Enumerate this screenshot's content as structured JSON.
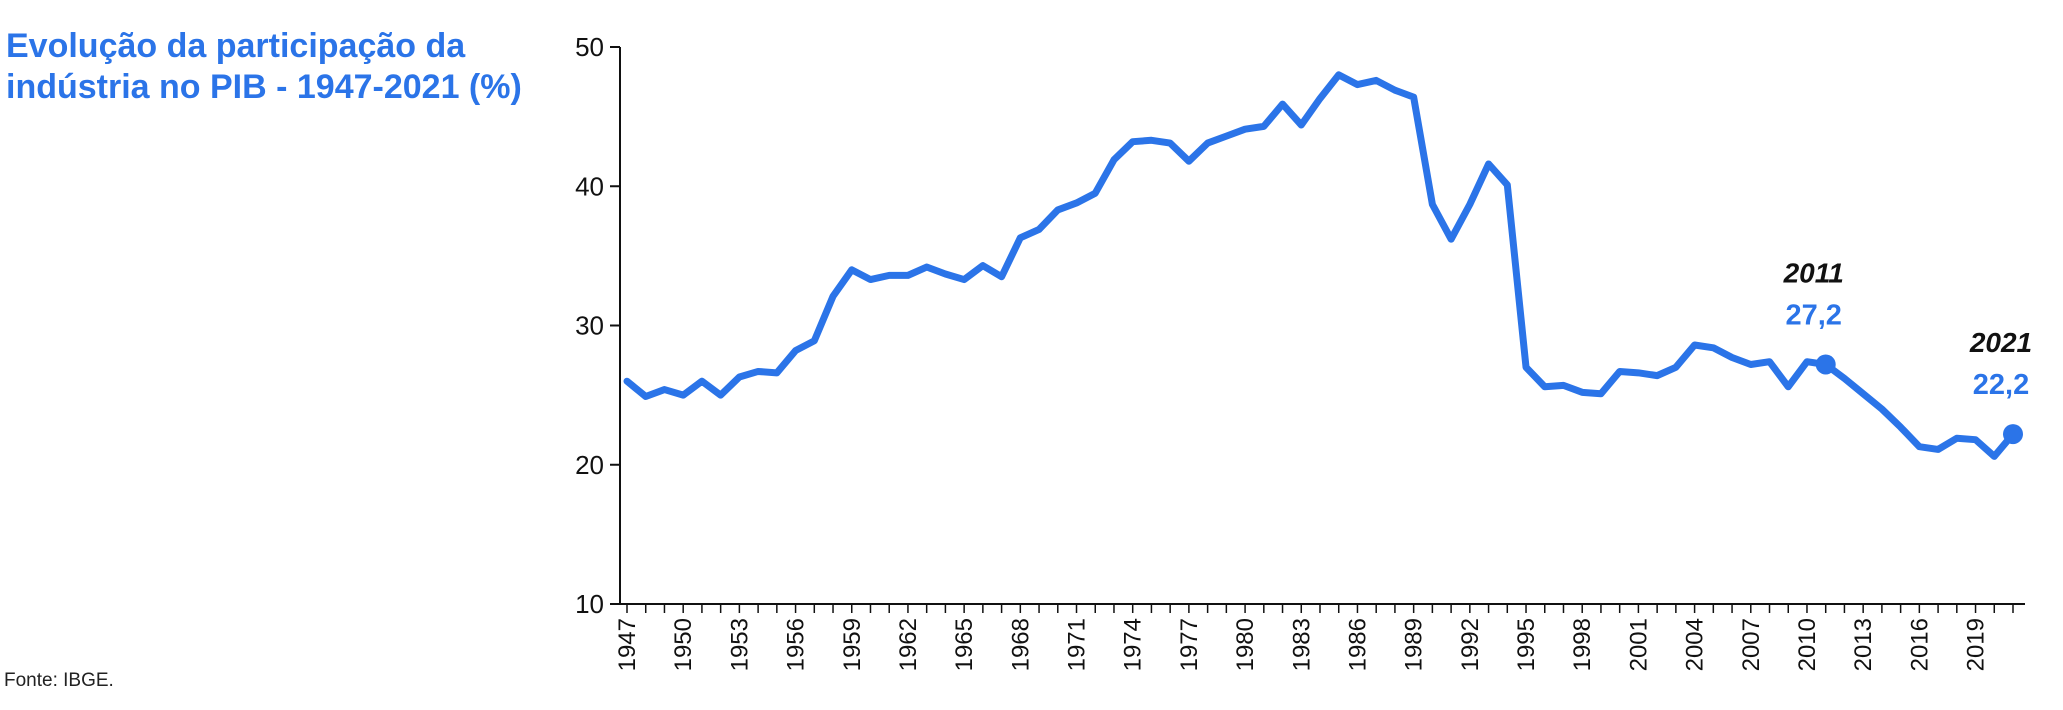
{
  "title": "Evolução da participação da indústria no PIB - 1947-2021 (%)",
  "source": "Fonte: IBGE.",
  "line_color": "#2b74e8",
  "chart_data": {
    "type": "line",
    "title": "Evolução da participação da indústria no PIB - 1947-2021 (%)",
    "xlabel": "",
    "ylabel": "",
    "ylim": [
      10,
      50
    ],
    "yticks": [
      10,
      20,
      30,
      40,
      50
    ],
    "xticks": [
      1947,
      1950,
      1953,
      1956,
      1959,
      1962,
      1965,
      1968,
      1971,
      1974,
      1977,
      1980,
      1983,
      1986,
      1989,
      1992,
      1995,
      1998,
      2001,
      2004,
      2007,
      2010,
      2013,
      2016,
      2019
    ],
    "grid": false,
    "legend": "none",
    "series": [
      {
        "x": [
          1947,
          1948,
          1949,
          1950,
          1951,
          1952,
          1953,
          1954,
          1955,
          1956,
          1957,
          1958,
          1959,
          1960,
          1961,
          1962,
          1963,
          1964,
          1965,
          1966,
          1967,
          1968,
          1969,
          1970,
          1971,
          1972,
          1973,
          1974,
          1975,
          1976,
          1977,
          1978,
          1979,
          1980,
          1981,
          1982,
          1983,
          1984,
          1985,
          1986,
          1987,
          1988,
          1989,
          1990,
          1991,
          1992,
          1993,
          1994,
          1995,
          1996,
          1997,
          1998,
          1999,
          2000,
          2001,
          2002,
          2003,
          2004,
          2005,
          2006,
          2007,
          2008,
          2009,
          2010,
          2011,
          2012,
          2013,
          2014,
          2015,
          2016,
          2017,
          2018,
          2019,
          2020,
          2021
        ],
        "values": [
          26.0,
          24.9,
          25.4,
          25.0,
          26.0,
          25.0,
          26.3,
          26.7,
          26.6,
          28.2,
          28.9,
          32.1,
          34.0,
          33.3,
          33.6,
          33.6,
          34.2,
          33.7,
          33.3,
          34.3,
          33.5,
          36.3,
          36.9,
          38.3,
          38.8,
          39.5,
          41.9,
          43.2,
          43.3,
          43.1,
          41.8,
          43.1,
          43.6,
          44.1,
          44.3,
          45.9,
          44.4,
          46.3,
          48.0,
          47.3,
          47.6,
          46.9,
          46.4,
          38.7,
          36.2,
          38.7,
          41.6,
          40.1,
          27.0,
          25.6,
          25.7,
          25.2,
          25.1,
          26.7,
          26.6,
          26.4,
          27.0,
          28.6,
          28.4,
          27.7,
          27.2,
          27.4,
          25.6,
          27.4,
          27.2,
          26.2,
          25.1,
          24.0,
          22.7,
          21.3,
          21.1,
          21.9,
          21.8,
          20.6,
          22.2
        ]
      }
    ],
    "annotations": [
      {
        "x": 2011,
        "y": 27.2,
        "year_label": "2011",
        "value_label": "27,2"
      },
      {
        "x": 2021,
        "y": 22.2,
        "year_label": "2021",
        "value_label": "22,2"
      }
    ]
  }
}
